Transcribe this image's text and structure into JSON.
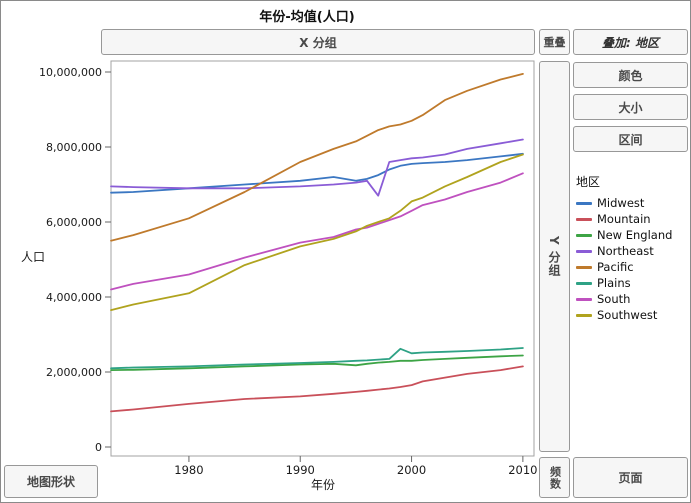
{
  "window": {
    "title": "年份-均值(人口)"
  },
  "zones": {
    "x_group": "X 分组",
    "overlap": "重叠",
    "overlay": "叠加: 地区",
    "color": "颜色",
    "size": "大小",
    "interval": "区间",
    "y_group": "Y 分组",
    "map_shape": "地图形状",
    "frequency": "频数",
    "page": "页面"
  },
  "axes": {
    "y_label": "人口",
    "x_label": "年份",
    "y_tick_labels": [
      "0",
      "2,000,000",
      "4,000,000",
      "6,000,000",
      "8,000,000",
      "10,000,000"
    ],
    "x_tick_labels": [
      "1980",
      "1990",
      "2000",
      "2010"
    ]
  },
  "legend": {
    "title": "地区"
  },
  "chart_data": {
    "type": "line",
    "title": "年份-均值(人口)",
    "xlabel": "年份",
    "ylabel": "人口",
    "xlim": [
      1973,
      2011
    ],
    "ylim": [
      0,
      10400000
    ],
    "x_tick_values": [
      1980,
      1990,
      2000,
      2010
    ],
    "y_tick_values": [
      0,
      2000000,
      4000000,
      6000000,
      8000000,
      10000000
    ],
    "grid": false,
    "legend_title": "地区",
    "legend_position": "right",
    "x": [
      1973,
      1975,
      1980,
      1985,
      1990,
      1993,
      1995,
      1996,
      1997,
      1998,
      1999,
      2000,
      2001,
      2003,
      2005,
      2008,
      2010
    ],
    "series": [
      {
        "name": "Midwest",
        "color": "#3B77C2",
        "values": [
          6780000,
          6800000,
          6900000,
          7000000,
          7100000,
          7200000,
          7100000,
          7150000,
          7250000,
          7400000,
          7500000,
          7550000,
          7570000,
          7600000,
          7650000,
          7750000,
          7820000
        ]
      },
      {
        "name": "Mountain",
        "color": "#C9505A",
        "values": [
          950000,
          1000000,
          1150000,
          1280000,
          1350000,
          1420000,
          1470000,
          1500000,
          1530000,
          1560000,
          1600000,
          1650000,
          1750000,
          1850000,
          1950000,
          2050000,
          2150000
        ]
      },
      {
        "name": "New England",
        "color": "#3DA445",
        "values": [
          2050000,
          2060000,
          2100000,
          2150000,
          2200000,
          2220000,
          2180000,
          2220000,
          2250000,
          2270000,
          2300000,
          2300000,
          2320000,
          2350000,
          2380000,
          2420000,
          2440000
        ]
      },
      {
        "name": "Northeast",
        "color": "#8A5CD6",
        "values": [
          6950000,
          6930000,
          6900000,
          6900000,
          6950000,
          7000000,
          7050000,
          7100000,
          6700000,
          7600000,
          7650000,
          7700000,
          7720000,
          7800000,
          7950000,
          8100000,
          8200000
        ]
      },
      {
        "name": "Pacific",
        "color": "#BF7A2C",
        "values": [
          5500000,
          5650000,
          6100000,
          6800000,
          7600000,
          7950000,
          8150000,
          8300000,
          8450000,
          8550000,
          8600000,
          8700000,
          8850000,
          9250000,
          9500000,
          9800000,
          9950000
        ]
      },
      {
        "name": "Plains",
        "color": "#2EA285",
        "values": [
          2100000,
          2120000,
          2150000,
          2200000,
          2240000,
          2270000,
          2300000,
          2310000,
          2330000,
          2350000,
          2620000,
          2500000,
          2520000,
          2540000,
          2560000,
          2600000,
          2640000
        ]
      },
      {
        "name": "South",
        "color": "#BF51BF",
        "values": [
          4200000,
          4350000,
          4600000,
          5050000,
          5450000,
          5600000,
          5800000,
          5850000,
          5950000,
          6050000,
          6150000,
          6300000,
          6450000,
          6600000,
          6800000,
          7050000,
          7300000
        ]
      },
      {
        "name": "Southwest",
        "color": "#B0A31E",
        "values": [
          3650000,
          3800000,
          4100000,
          4850000,
          5350000,
          5550000,
          5750000,
          5900000,
          6000000,
          6100000,
          6300000,
          6550000,
          6650000,
          6950000,
          7200000,
          7600000,
          7800000
        ]
      }
    ]
  }
}
